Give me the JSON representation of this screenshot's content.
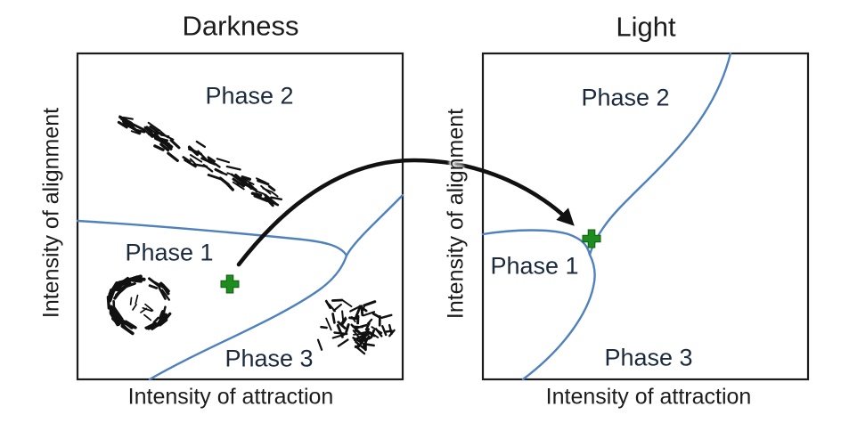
{
  "colors": {
    "blue": "#4f81bd",
    "green": "#1f8c1f",
    "navy": "#1b2a3d",
    "ink": "#1c1c1c"
  },
  "panels": [
    {
      "id": "darkness",
      "title": "Darkness",
      "y_axis_label": "Intensity of alignment",
      "x_axis_label": "Intensity of attraction",
      "phase1": "Phase 1",
      "phase2": "Phase 2",
      "phase3": "Phase 3",
      "marker": "green-cross",
      "icons": [
        "aligned-school-icon",
        "mill-icon",
        "scattered-swarm-icon"
      ]
    },
    {
      "id": "light",
      "title": "Light",
      "y_axis_label": "Intensity of alignment",
      "x_axis_label": "Intensity of attraction",
      "phase1": "Phase 1",
      "phase2": "Phase 2",
      "phase3": "Phase 3",
      "marker": "green-cross",
      "icons": []
    }
  ],
  "annotations": {
    "transition_arrow_icon": "curved-arrow-icon"
  }
}
